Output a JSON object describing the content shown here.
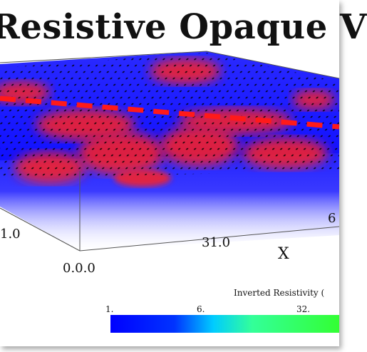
{
  "title": "Resistive Opaque V",
  "axes": {
    "x_label": "X",
    "tick_left": "1.0",
    "tick_origin": "0.0.0",
    "tick_mid": "31.0",
    "tick_right": "6"
  },
  "colorbar": {
    "title": "Inverted Resistivity (",
    "ticks": [
      "1.",
      "6.",
      "32."
    ],
    "colors": [
      "#0000ff",
      "#00ccff",
      "#33ff33"
    ]
  }
}
